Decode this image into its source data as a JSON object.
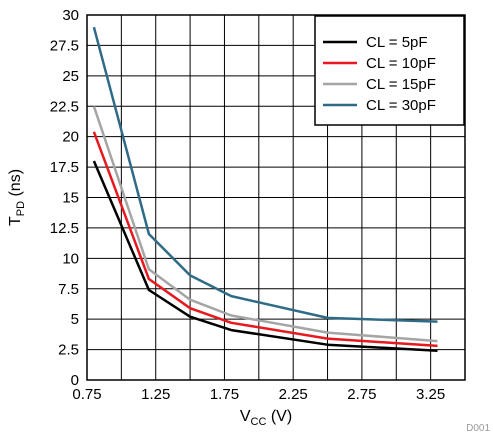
{
  "chart_data": {
    "type": "line",
    "xlabel_main": "V",
    "xlabel_sub": "CC",
    "xlabel_unit": " (V)",
    "ylabel_main": "T",
    "ylabel_sub": "PD",
    "ylabel_unit": " (ns)",
    "xlim": [
      0.75,
      3.5
    ],
    "ylim": [
      0,
      30
    ],
    "x_ticks": [
      0.75,
      1,
      1.25,
      1.5,
      1.75,
      2,
      2.25,
      2.5,
      2.75,
      3,
      3.25,
      3.5
    ],
    "x_tick_labels": [
      "0.75",
      "",
      "1.25",
      "",
      "1.75",
      "",
      "2.25",
      "",
      "2.75",
      "",
      "3.25",
      ""
    ],
    "y_ticks": [
      0,
      2.5,
      5,
      7.5,
      10,
      12.5,
      15,
      17.5,
      20,
      22.5,
      25,
      27.5,
      30
    ],
    "y_tick_labels": [
      "0",
      "2.5",
      "5",
      "7.5",
      "10",
      "12.5",
      "15",
      "17.5",
      "20",
      "22.5",
      "25",
      "27.5",
      "30"
    ],
    "grid": true,
    "legend_position": "top-right",
    "figure_id": "D001",
    "series": [
      {
        "name": "CL = 5pF",
        "color": "#000000",
        "points": [
          [
            0.8,
            18.0
          ],
          [
            1.2,
            7.4
          ],
          [
            1.5,
            5.2
          ],
          [
            1.8,
            4.1
          ],
          [
            2.5,
            2.9
          ],
          [
            3.3,
            2.4
          ]
        ]
      },
      {
        "name": "CL = 10pF",
        "color": "#e8191e",
        "points": [
          [
            0.8,
            20.4
          ],
          [
            1.2,
            8.3
          ],
          [
            1.5,
            5.9
          ],
          [
            1.8,
            4.7
          ],
          [
            2.5,
            3.4
          ],
          [
            3.3,
            2.8
          ]
        ]
      },
      {
        "name": "CL = 15pF",
        "color": "#a5a5a5",
        "points": [
          [
            0.8,
            22.5
          ],
          [
            1.2,
            9.1
          ],
          [
            1.5,
            6.6
          ],
          [
            1.8,
            5.3
          ],
          [
            2.5,
            3.9
          ],
          [
            3.3,
            3.2
          ]
        ]
      },
      {
        "name": "CL = 30pF",
        "color": "#2f6b87",
        "points": [
          [
            0.8,
            29.0
          ],
          [
            1.2,
            12.0
          ],
          [
            1.5,
            8.6
          ],
          [
            1.8,
            6.9
          ],
          [
            2.5,
            5.1
          ],
          [
            3.3,
            4.8
          ]
        ]
      }
    ]
  }
}
